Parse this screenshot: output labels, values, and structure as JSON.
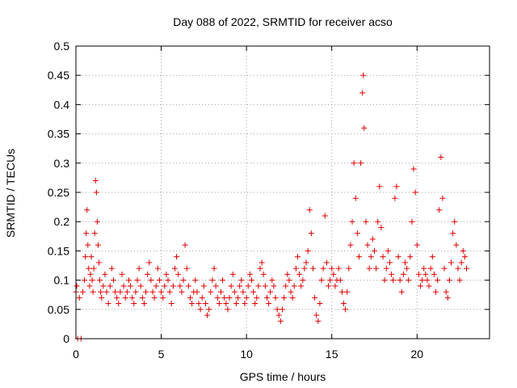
{
  "chart_data": {
    "type": "scatter",
    "title": "Day 088 of 2022, SRMTID for receiver acso",
    "xlabel": "GPS time / hours",
    "ylabel": "SRMTID / TECUs",
    "xlim": [
      0,
      24.25
    ],
    "ylim": [
      0,
      0.5
    ],
    "x_ticks": [
      0,
      5,
      10,
      15,
      20
    ],
    "x_tick_labels": [
      "0",
      "5",
      "10",
      "15",
      "20"
    ],
    "y_ticks": [
      0,
      0.05,
      0.1,
      0.15,
      0.2,
      0.25,
      0.3,
      0.35,
      0.4,
      0.45,
      0.5
    ],
    "y_tick_labels": [
      "0",
      "0.05",
      "0.1",
      "0.15",
      "0.2",
      "0.25",
      "0.3",
      "0.35",
      "0.4",
      "0.45",
      "0.5"
    ],
    "grid": true,
    "marker": "+",
    "marker_color": "#e00000",
    "series": [
      {
        "name": "SRMTID",
        "x": [
          0.0,
          0.05,
          0.1,
          0.2,
          0.3,
          0.4,
          0.5,
          0.55,
          0.6,
          0.65,
          0.7,
          0.75,
          0.8,
          0.85,
          0.9,
          0.95,
          1.0,
          1.05,
          1.1,
          1.15,
          1.2,
          1.25,
          1.3,
          1.35,
          1.4,
          1.45,
          1.5,
          1.6,
          1.7,
          1.8,
          1.9,
          2.0,
          2.1,
          2.2,
          2.3,
          2.4,
          2.5,
          2.6,
          2.7,
          2.8,
          2.9,
          3.0,
          3.1,
          3.2,
          3.3,
          3.4,
          3.5,
          3.6,
          3.7,
          3.8,
          3.9,
          4.0,
          4.1,
          4.2,
          4.3,
          4.4,
          4.5,
          4.6,
          4.7,
          4.8,
          4.9,
          5.0,
          5.1,
          5.2,
          5.3,
          5.4,
          5.5,
          5.6,
          5.7,
          5.8,
          5.9,
          6.0,
          6.1,
          6.2,
          6.3,
          6.4,
          6.5,
          6.6,
          6.7,
          6.8,
          6.9,
          7.0,
          7.1,
          7.2,
          7.3,
          7.4,
          7.5,
          7.6,
          7.7,
          7.8,
          7.9,
          8.0,
          8.1,
          8.2,
          8.3,
          8.4,
          8.5,
          8.6,
          8.7,
          8.8,
          8.9,
          9.0,
          9.1,
          9.2,
          9.3,
          9.4,
          9.5,
          9.6,
          9.7,
          9.8,
          9.9,
          10.0,
          10.1,
          10.2,
          10.3,
          10.4,
          10.5,
          10.6,
          10.7,
          10.8,
          10.9,
          11.0,
          11.1,
          11.2,
          11.3,
          11.4,
          11.5,
          11.6,
          11.7,
          11.8,
          11.9,
          12.0,
          12.1,
          12.2,
          12.3,
          12.4,
          12.5,
          12.6,
          12.7,
          12.8,
          12.9,
          13.0,
          13.1,
          13.2,
          13.3,
          13.4,
          13.5,
          13.6,
          13.7,
          13.8,
          13.9,
          14.0,
          14.1,
          14.2,
          14.3,
          14.4,
          14.5,
          14.6,
          14.7,
          14.8,
          14.9,
          15.0,
          15.1,
          15.2,
          15.3,
          15.4,
          15.5,
          15.6,
          15.7,
          15.8,
          15.9,
          16.0,
          16.1,
          16.2,
          16.3,
          16.4,
          16.5,
          16.6,
          16.7,
          16.8,
          16.85,
          16.9,
          17.0,
          17.1,
          17.2,
          17.3,
          17.4,
          17.5,
          17.6,
          17.7,
          17.8,
          17.9,
          18.0,
          18.1,
          18.2,
          18.3,
          18.4,
          18.5,
          18.6,
          18.7,
          18.8,
          18.9,
          19.0,
          19.1,
          19.2,
          19.3,
          19.4,
          19.5,
          19.6,
          19.7,
          19.8,
          19.9,
          20.0,
          20.1,
          20.2,
          20.3,
          20.4,
          20.5,
          20.6,
          20.7,
          20.8,
          20.9,
          21.0,
          21.1,
          21.2,
          21.3,
          21.4,
          21.5,
          21.6,
          21.7,
          21.8,
          21.9,
          22.0,
          22.1,
          22.2,
          22.3,
          22.4,
          22.5,
          22.6,
          22.7,
          22.8,
          22.9
        ],
        "y": [
          0.08,
          0.09,
          0.0,
          0.07,
          0.0,
          0.08,
          0.1,
          0.14,
          0.18,
          0.22,
          0.16,
          0.12,
          0.09,
          0.11,
          0.14,
          0.1,
          0.08,
          0.12,
          0.18,
          0.27,
          0.25,
          0.2,
          0.16,
          0.13,
          0.1,
          0.08,
          0.07,
          0.09,
          0.11,
          0.08,
          0.06,
          0.09,
          0.12,
          0.1,
          0.08,
          0.07,
          0.06,
          0.08,
          0.11,
          0.09,
          0.07,
          0.08,
          0.1,
          0.09,
          0.07,
          0.06,
          0.08,
          0.1,
          0.12,
          0.09,
          0.07,
          0.06,
          0.08,
          0.11,
          0.13,
          0.1,
          0.08,
          0.07,
          0.09,
          0.12,
          0.1,
          0.08,
          0.07,
          0.09,
          0.11,
          0.1,
          0.08,
          0.06,
          0.09,
          0.12,
          0.14,
          0.11,
          0.09,
          0.08,
          0.1,
          0.16,
          0.12,
          0.09,
          0.07,
          0.06,
          0.08,
          0.1,
          0.08,
          0.06,
          0.05,
          0.07,
          0.09,
          0.06,
          0.04,
          0.05,
          0.08,
          0.1,
          0.12,
          0.09,
          0.07,
          0.06,
          0.08,
          0.1,
          0.07,
          0.06,
          0.05,
          0.07,
          0.09,
          0.11,
          0.08,
          0.06,
          0.07,
          0.09,
          0.1,
          0.08,
          0.06,
          0.07,
          0.09,
          0.11,
          0.1,
          0.08,
          0.06,
          0.07,
          0.09,
          0.12,
          0.13,
          0.11,
          0.09,
          0.07,
          0.06,
          0.08,
          0.1,
          0.09,
          0.07,
          0.05,
          0.04,
          0.03,
          0.05,
          0.07,
          0.09,
          0.11,
          0.1,
          0.08,
          0.07,
          0.09,
          0.12,
          0.14,
          0.11,
          0.09,
          0.1,
          0.12,
          0.13,
          0.15,
          0.22,
          0.18,
          0.12,
          0.07,
          0.04,
          0.03,
          0.06,
          0.1,
          0.12,
          0.21,
          0.13,
          0.09,
          0.1,
          0.12,
          0.11,
          0.09,
          0.1,
          0.12,
          0.1,
          0.08,
          0.06,
          0.05,
          0.08,
          0.12,
          0.16,
          0.2,
          0.3,
          0.24,
          0.18,
          0.14,
          0.3,
          0.42,
          0.45,
          0.36,
          0.2,
          0.16,
          0.12,
          0.14,
          0.17,
          0.15,
          0.12,
          0.2,
          0.26,
          0.19,
          0.14,
          0.1,
          0.12,
          0.15,
          0.13,
          0.11,
          0.1,
          0.24,
          0.26,
          0.14,
          0.1,
          0.08,
          0.11,
          0.13,
          0.12,
          0.1,
          0.14,
          0.2,
          0.29,
          0.25,
          0.16,
          0.11,
          0.09,
          0.1,
          0.12,
          0.11,
          0.1,
          0.09,
          0.12,
          0.14,
          0.11,
          0.08,
          0.1,
          0.22,
          0.31,
          0.24,
          0.12,
          0.08,
          0.07,
          0.1,
          0.13,
          0.18,
          0.2,
          0.16,
          0.12,
          0.1,
          0.13,
          0.15,
          0.14,
          0.12
        ]
      }
    ]
  }
}
